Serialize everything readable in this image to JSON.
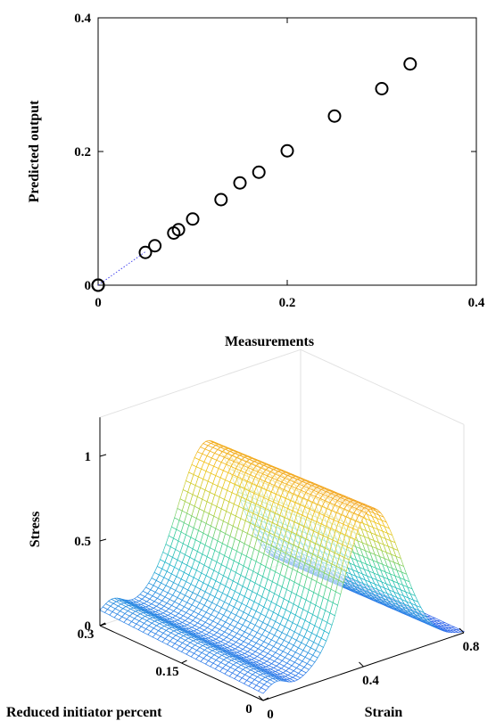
{
  "chart_data": [
    {
      "type": "scatter",
      "xlabel": "Measurements",
      "ylabel": "Predicted output",
      "xlim": [
        0,
        0.4
      ],
      "ylim": [
        0,
        0.4
      ],
      "x_ticks": [
        "0",
        "0.2",
        "0.4"
      ],
      "y_ticks": [
        "0",
        "0.2",
        "0.4"
      ],
      "grid": false,
      "reference_line": {
        "style": "dotted",
        "color": "#4a4af0",
        "from": [
          0,
          0
        ],
        "to": [
          0.05,
          0.05
        ]
      },
      "points": [
        {
          "x": 0,
          "y": 0
        },
        {
          "x": 0,
          "y": 0
        },
        {
          "x": 0,
          "y": 0
        },
        {
          "x": 0.05,
          "y": 0.049
        },
        {
          "x": 0.06,
          "y": 0.059
        },
        {
          "x": 0.08,
          "y": 0.078
        },
        {
          "x": 0.085,
          "y": 0.083
        },
        {
          "x": 0.1,
          "y": 0.099
        },
        {
          "x": 0.13,
          "y": 0.128
        },
        {
          "x": 0.15,
          "y": 0.153
        },
        {
          "x": 0.17,
          "y": 0.169
        },
        {
          "x": 0.2,
          "y": 0.201
        },
        {
          "x": 0.25,
          "y": 0.253
        },
        {
          "x": 0.3,
          "y": 0.294
        },
        {
          "x": 0.33,
          "y": 0.331
        }
      ]
    },
    {
      "type": "surface",
      "xlabel": "Strain",
      "ylabel": "Reduced initiator percent",
      "zlabel": "Stress",
      "x_ticks": [
        "0",
        "0.4",
        "0.8"
      ],
      "y_ticks": [
        "0",
        "0.15",
        "0.3"
      ],
      "z_ticks": [
        "0",
        "0.5",
        "1"
      ],
      "xlim": [
        0,
        0.8
      ],
      "ylim": [
        0,
        0.3
      ],
      "zlim": [
        0,
        1
      ],
      "colormap": [
        "#3b3bf2",
        "#2f7fe8",
        "#22b5cc",
        "#3fd09a",
        "#b8d03c",
        "#f2c51b",
        "#f29a1f"
      ]
    }
  ]
}
